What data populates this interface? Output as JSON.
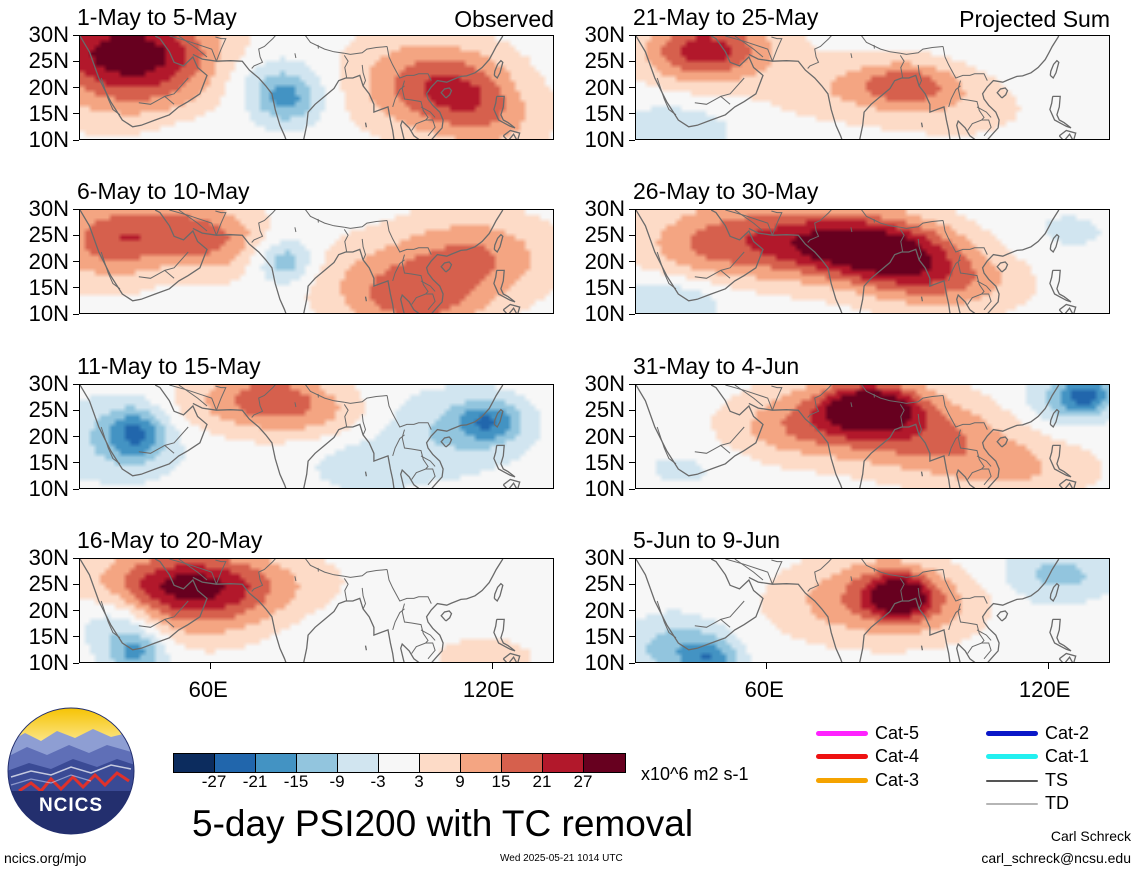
{
  "panels": [
    {
      "date_range": "1-May to 5-May",
      "tag": "Observed"
    },
    {
      "date_range": "6-May to 10-May",
      "tag": ""
    },
    {
      "date_range": "11-May to 15-May",
      "tag": ""
    },
    {
      "date_range": "16-May to 20-May",
      "tag": ""
    },
    {
      "date_range": "21-May to 25-May",
      "tag": "Projected Sum"
    },
    {
      "date_range": "26-May to 30-May",
      "tag": ""
    },
    {
      "date_range": "31-May to 4-Jun",
      "tag": ""
    },
    {
      "date_range": "5-Jun to 9-Jun",
      "tag": ""
    }
  ],
  "lat_labels": [
    "30N",
    "25N",
    "20N",
    "15N",
    "10N"
  ],
  "lon_labels": [
    "60E",
    "120E"
  ],
  "colorbar": {
    "colors": [
      "#0c2c5e",
      "#2166ac",
      "#4393c3",
      "#92c5de",
      "#d1e5f0",
      "#f7f7f7",
      "#fddbc7",
      "#f4a582",
      "#d6604d",
      "#b2182b",
      "#67001f"
    ],
    "labels": [
      "-27",
      "-21",
      "-15",
      "-9",
      "-3",
      "3",
      "9",
      "15",
      "21",
      "27"
    ],
    "units": "x10^6 m2 s-1"
  },
  "title": "5-day PSI200 with TC removal",
  "legend": [
    {
      "label": "Cat-5",
      "color": "#ff22ff"
    },
    {
      "label": "Cat-4",
      "color": "#ee1111"
    },
    {
      "label": "Cat-3",
      "color": "#f5a300"
    },
    {
      "label": "Cat-2",
      "color": "#0a17c8"
    },
    {
      "label": "Cat-1",
      "color": "#22f0f0"
    },
    {
      "label": "TS",
      "color": "#555555"
    },
    {
      "label": "TD",
      "color": "#b5b5b5"
    }
  ],
  "logo_text": "NCICS",
  "footer": {
    "website": "ncics.org/mjo",
    "timestamp": "Wed 2025-05-21 1014 UTC",
    "author": "Carl Schreck",
    "email": "carl_schreck@ncsu.edu"
  },
  "anomaly_centers": [
    [
      [
        40,
        28,
        15,
        16,
        7
      ],
      [
        46,
        24,
        20,
        22,
        10
      ],
      [
        69,
        22,
        -9,
        13,
        7
      ],
      [
        76,
        18,
        -15,
        7,
        5
      ],
      [
        100,
        22,
        7,
        14,
        10
      ],
      [
        110,
        20,
        15,
        14,
        8
      ],
      [
        120,
        16,
        12,
        12,
        8
      ],
      [
        125,
        19,
        -4,
        8,
        6
      ],
      [
        55,
        12,
        -3,
        10,
        5
      ]
    ],
    [
      [
        38,
        24,
        16,
        12,
        8
      ],
      [
        54,
        26,
        15,
        14,
        6
      ],
      [
        64,
        22,
        9,
        10,
        6
      ],
      [
        72,
        21,
        -7,
        9,
        5
      ],
      [
        76,
        20,
        -10,
        5,
        4
      ],
      [
        96,
        17,
        9,
        16,
        8
      ],
      [
        116,
        21,
        15,
        16,
        8
      ],
      [
        104,
        12,
        12,
        14,
        6
      ]
    ],
    [
      [
        40,
        20,
        -10,
        14,
        8
      ],
      [
        44,
        21,
        -15,
        6,
        5
      ],
      [
        66,
        26,
        9,
        20,
        6
      ],
      [
        73,
        28,
        11,
        11,
        5
      ],
      [
        84,
        24,
        6,
        12,
        5
      ],
      [
        110,
        21,
        -9,
        16,
        8
      ],
      [
        119,
        23,
        -16,
        7,
        4
      ],
      [
        88,
        15,
        -4,
        10,
        6
      ],
      [
        98,
        13,
        -2,
        10,
        5
      ]
    ],
    [
      [
        46,
        25,
        6,
        16,
        7
      ],
      [
        54,
        25,
        15,
        16,
        6
      ],
      [
        64,
        25,
        12,
        20,
        7
      ],
      [
        60,
        18,
        6,
        16,
        6
      ],
      [
        40,
        18,
        -10,
        8,
        6
      ],
      [
        44,
        12,
        -15,
        6,
        4
      ],
      [
        80,
        16,
        -2,
        14,
        6
      ],
      [
        118,
        11,
        8,
        10,
        4
      ]
    ],
    [
      [
        45,
        27,
        18,
        12,
        6
      ],
      [
        52,
        28,
        8,
        14,
        6
      ],
      [
        80,
        20,
        9,
        20,
        6
      ],
      [
        90,
        21,
        12,
        10,
        4
      ],
      [
        101,
        16,
        5,
        16,
        6
      ],
      [
        40,
        12,
        -8,
        12,
        5
      ],
      [
        128,
        22,
        -3,
        10,
        6
      ]
    ],
    [
      [
        60,
        25,
        15,
        22,
        8
      ],
      [
        78,
        23,
        22,
        16,
        6
      ],
      [
        90,
        20,
        18,
        14,
        7
      ],
      [
        102,
        16,
        9,
        14,
        6
      ],
      [
        46,
        22,
        7,
        14,
        7
      ],
      [
        40,
        13,
        -9,
        12,
        5
      ],
      [
        124,
        26,
        -4,
        12,
        5
      ]
    ],
    [
      [
        78,
        24,
        18,
        18,
        7
      ],
      [
        82,
        26,
        24,
        9,
        4
      ],
      [
        95,
        20,
        12,
        18,
        7
      ],
      [
        112,
        14,
        9,
        18,
        6
      ],
      [
        62,
        21,
        6,
        14,
        6
      ],
      [
        42,
        14,
        -4,
        12,
        5
      ],
      [
        124,
        27,
        -12,
        9,
        5
      ],
      [
        128,
        28,
        -16,
        5,
        3
      ]
    ],
    [
      [
        84,
        23,
        15,
        15,
        8
      ],
      [
        88,
        23,
        24,
        7,
        4
      ],
      [
        100,
        20,
        6,
        14,
        6
      ],
      [
        68,
        21,
        4,
        12,
        7
      ],
      [
        40,
        13,
        -12,
        10,
        6
      ],
      [
        48,
        11,
        -15,
        6,
        4
      ],
      [
        122,
        27,
        -11,
        12,
        5
      ],
      [
        112,
        18,
        -3,
        10,
        5
      ]
    ]
  ],
  "coastlines": [
    [
      [
        32,
        30
      ],
      [
        34,
        27
      ],
      [
        36,
        22
      ],
      [
        38.5,
        17.5
      ],
      [
        41,
        14
      ],
      [
        43.2,
        12.7
      ],
      [
        45,
        13
      ],
      [
        48,
        14
      ],
      [
        51,
        15
      ],
      [
        53,
        16.5
      ],
      [
        55,
        17.5
      ],
      [
        57.5,
        19
      ],
      [
        59,
        22.5
      ],
      [
        57,
        24
      ],
      [
        56,
        26
      ],
      [
        54,
        24.3
      ],
      [
        52,
        25
      ],
      [
        51,
        27
      ],
      [
        49,
        29.5
      ],
      [
        48,
        30
      ]
    ],
    [
      [
        56,
        26.5
      ],
      [
        58,
        25.6
      ],
      [
        61,
        25.2
      ],
      [
        64,
        25.3
      ],
      [
        66.5,
        25.2
      ],
      [
        68,
        23.5
      ],
      [
        70,
        22
      ],
      [
        71.5,
        20.5
      ],
      [
        72.8,
        19
      ],
      [
        73.5,
        16
      ],
      [
        74.5,
        13
      ],
      [
        75.5,
        11
      ],
      [
        76.5,
        8.5
      ],
      [
        78,
        8
      ],
      [
        79.5,
        10
      ],
      [
        80.2,
        13
      ],
      [
        80.5,
        15.5
      ],
      [
        82,
        17
      ],
      [
        84,
        18.5
      ],
      [
        86,
        20
      ],
      [
        87,
        21.5
      ],
      [
        88.5,
        22
      ],
      [
        90,
        22
      ],
      [
        91.5,
        22.5
      ],
      [
        92.2,
        20.5
      ],
      [
        93.5,
        19
      ],
      [
        94.5,
        17
      ],
      [
        94.5,
        15.5
      ],
      [
        97.5,
        16.5
      ],
      [
        98,
        14
      ],
      [
        98.5,
        12
      ],
      [
        98.8,
        10
      ],
      [
        99.3,
        8
      ],
      [
        100.2,
        6
      ],
      [
        101,
        10
      ],
      [
        100.2,
        13
      ],
      [
        100.5,
        13.8
      ],
      [
        102,
        12.5
      ],
      [
        103,
        11
      ],
      [
        104.5,
        10
      ],
      [
        105,
        8.8
      ],
      [
        106.5,
        10
      ],
      [
        108,
        11.5
      ],
      [
        109,
        12.5
      ],
      [
        109.2,
        14
      ],
      [
        108.5,
        15.5
      ],
      [
        107,
        16.8
      ],
      [
        106,
        18
      ],
      [
        105.7,
        19
      ],
      [
        106.7,
        20.3
      ],
      [
        108,
        21.5
      ],
      [
        110,
        21.2
      ],
      [
        111,
        21.6
      ],
      [
        113,
        22.3
      ],
      [
        114.2,
        22.4
      ],
      [
        116,
        23
      ],
      [
        117.5,
        24
      ],
      [
        119,
        25.5
      ],
      [
        119.8,
        26.8
      ],
      [
        120.5,
        28
      ],
      [
        121.9,
        30
      ]
    ],
    [
      [
        109.8,
        18.2
      ],
      [
        110.6,
        18.8
      ],
      [
        111,
        19.6
      ],
      [
        110.5,
        20.1
      ],
      [
        109.5,
        19.9
      ],
      [
        108.8,
        19.2
      ],
      [
        109.8,
        18.2
      ]
    ],
    [
      [
        120.1,
        22.5
      ],
      [
        120.7,
        22
      ],
      [
        121.3,
        23
      ],
      [
        121.9,
        25
      ],
      [
        121.5,
        25.3
      ],
      [
        120.8,
        24.6
      ],
      [
        120.2,
        23.3
      ],
      [
        120.1,
        22.5
      ]
    ],
    [
      [
        120.6,
        18.5
      ],
      [
        122.2,
        18.5
      ],
      [
        122,
        16.5
      ],
      [
        121.5,
        15
      ],
      [
        122,
        14
      ],
      [
        123,
        13.5
      ],
      [
        124.5,
        12.5
      ],
      [
        123.5,
        12.8
      ],
      [
        122,
        13.5
      ],
      [
        121,
        14
      ],
      [
        120.6,
        14.8
      ],
      [
        120,
        16
      ],
      [
        120.4,
        17.2
      ],
      [
        120.6,
        18.5
      ]
    ],
    [
      [
        122,
        11
      ],
      [
        123,
        10
      ],
      [
        124.2,
        11.3
      ],
      [
        125,
        10
      ],
      [
        125.5,
        11.5
      ],
      [
        123.5,
        12
      ],
      [
        122,
        11
      ]
    ],
    [
      [
        79.8,
        9.9
      ],
      [
        80.3,
        9.3
      ],
      [
        81.3,
        8.5
      ],
      [
        81.8,
        7.5
      ]
    ],
    [
      [
        92.7,
        13.5
      ],
      [
        92.9,
        12.6
      ]
    ]
  ],
  "borders": [
    [
      [
        74,
        34
      ],
      [
        74.5,
        32
      ],
      [
        74.5,
        31
      ],
      [
        73,
        29.5
      ],
      [
        71.2,
        28
      ],
      [
        70,
        27.5
      ],
      [
        70.3,
        26
      ],
      [
        70.8,
        25
      ],
      [
        69,
        24.3
      ],
      [
        68.5,
        23.8
      ]
    ],
    [
      [
        61,
        25.2
      ],
      [
        62,
        27.5
      ],
      [
        63,
        29.5
      ],
      [
        62,
        29.5
      ],
      [
        60.8,
        29.8
      ]
    ],
    [
      [
        51,
        30
      ],
      [
        55,
        29
      ],
      [
        60,
        27.5
      ],
      [
        61,
        25.2
      ]
    ],
    [
      [
        53,
        30
      ],
      [
        57,
        27.5
      ],
      [
        59,
        26
      ]
    ],
    [
      [
        55,
        22
      ],
      [
        52,
        19
      ],
      [
        50,
        18.5
      ],
      [
        52,
        17
      ]
    ],
    [
      [
        44.5,
        17.3
      ],
      [
        47,
        17
      ],
      [
        50,
        18.5
      ]
    ],
    [
      [
        36.5,
        22
      ],
      [
        38,
        18
      ],
      [
        39,
        16
      ],
      [
        40.5,
        15
      ]
    ],
    [
      [
        78.5,
        31
      ],
      [
        80,
        30
      ],
      [
        81,
        28.8
      ],
      [
        84,
        27.5
      ],
      [
        86,
        27
      ],
      [
        88.2,
        26.7
      ]
    ],
    [
      [
        88.2,
        26.7
      ],
      [
        89.5,
        26.5
      ],
      [
        92,
        26.8
      ],
      [
        93,
        27.5
      ],
      [
        95,
        27.8
      ],
      [
        97.3,
        28
      ]
    ],
    [
      [
        88.2,
        26.3
      ],
      [
        89,
        25.2
      ],
      [
        88.3,
        24
      ],
      [
        88.7,
        22
      ]
    ],
    [
      [
        92,
        24.5
      ],
      [
        92.2,
        23
      ],
      [
        92.7,
        21.5
      ],
      [
        92.2,
        20.5
      ]
    ],
    [
      [
        97.3,
        28
      ],
      [
        97.7,
        26
      ],
      [
        98.5,
        24.5
      ],
      [
        100,
        22
      ],
      [
        101.5,
        22.5
      ],
      [
        103,
        22.5
      ],
      [
        104,
        22.8
      ],
      [
        106,
        22.8
      ],
      [
        106.7,
        21.5
      ]
    ],
    [
      [
        101,
        21.5
      ],
      [
        100.5,
        20
      ],
      [
        101,
        18
      ],
      [
        102.5,
        17.8
      ],
      [
        104.5,
        17.5
      ],
      [
        105,
        15.8
      ],
      [
        106,
        14.5
      ],
      [
        105.5,
        14
      ]
    ],
    [
      [
        98.5,
        16.5
      ],
      [
        99,
        18
      ],
      [
        100,
        19.8
      ],
      [
        101,
        20.5
      ]
    ],
    [
      [
        102.5,
        12
      ],
      [
        103.5,
        13.3
      ],
      [
        105.5,
        14
      ],
      [
        107,
        14
      ],
      [
        107.5,
        12.6
      ],
      [
        106,
        11
      ]
    ],
    [
      [
        104.5,
        16.5
      ],
      [
        106.5,
        15.5
      ],
      [
        107.5,
        14.5
      ]
    ]
  ],
  "lakes": [
    [
      [
        82.6,
        28.3
      ],
      [
        82.7,
        27.6
      ]
    ],
    [
      [
        77.7,
        26.7
      ],
      [
        77.9,
        25.8
      ]
    ]
  ]
}
